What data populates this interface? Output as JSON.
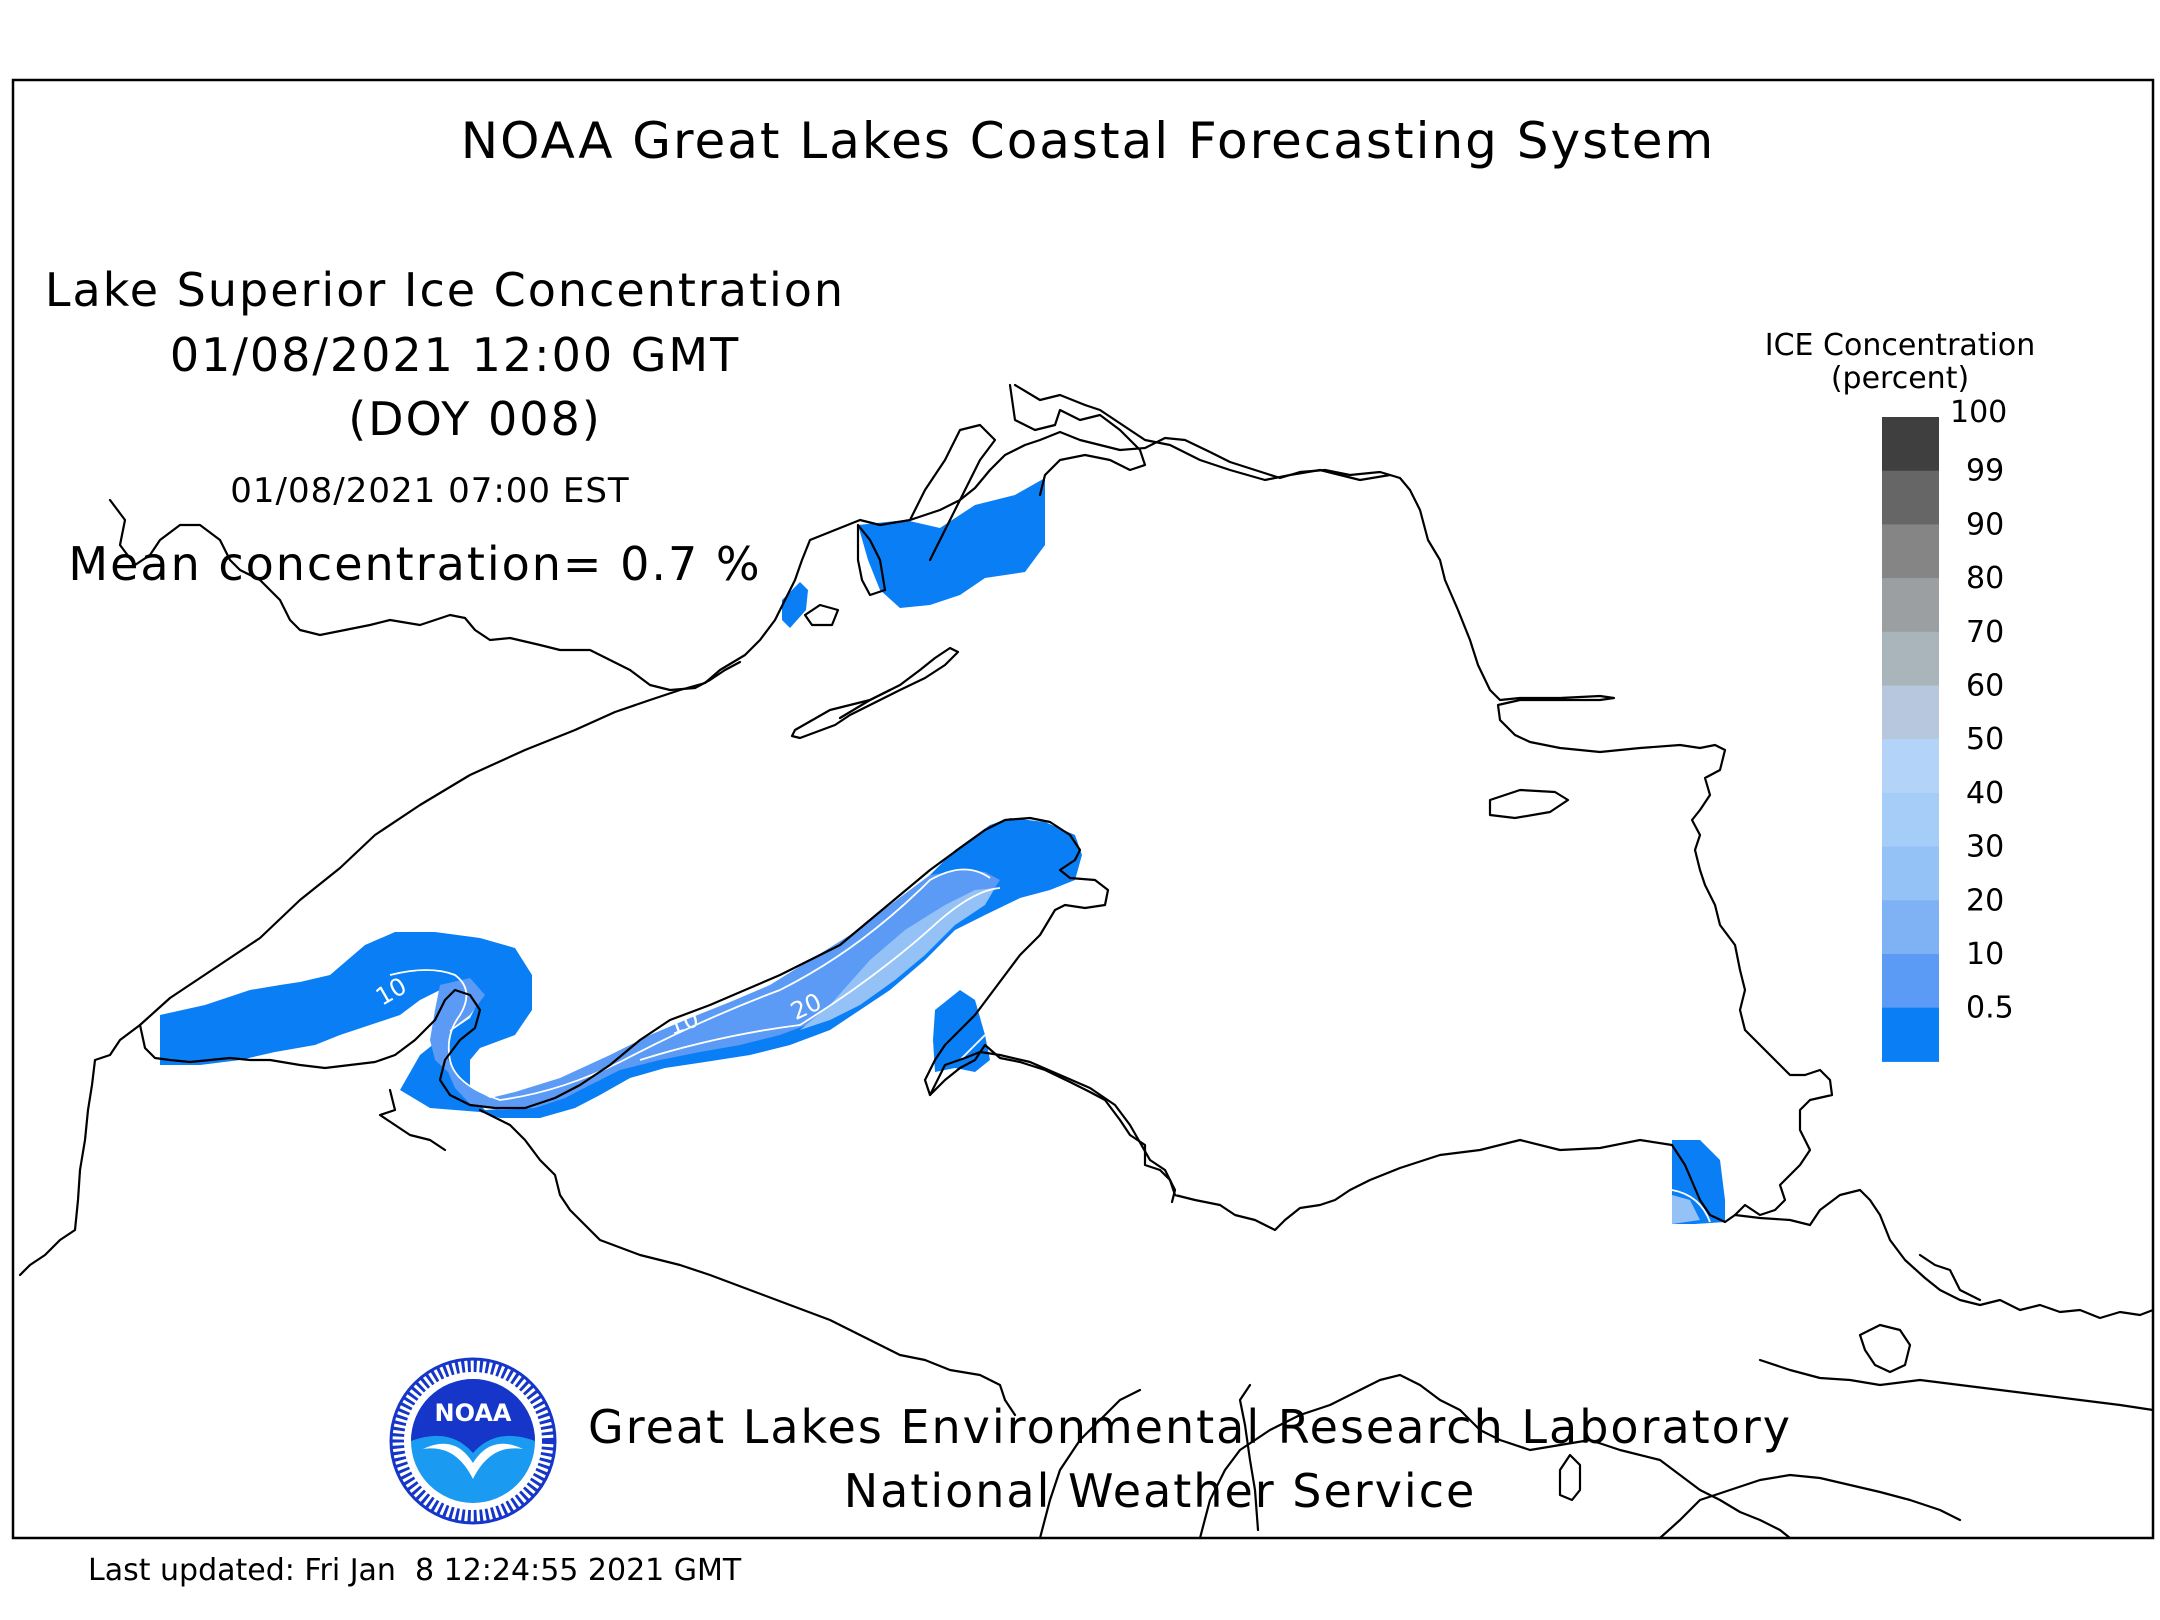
{
  "header": {
    "title": "NOAA Great Lakes Coastal Forecasting System"
  },
  "info": {
    "map_title": "Lake Superior Ice Concentration",
    "gmt_time": "01/08/2021 12:00 GMT",
    "doy": "(DOY 008)",
    "est_time": "01/08/2021 07:00 EST",
    "mean_concentration": "Mean concentration= 0.7 %"
  },
  "legend": {
    "title_line1": "ICE Concentration",
    "title_line2": "(percent)",
    "levels": [
      {
        "label": "100",
        "color": "#3f3f3f"
      },
      {
        "label": "99",
        "color": "#666666"
      },
      {
        "label": "90",
        "color": "#858585"
      },
      {
        "label": "80",
        "color": "#9b9fa1"
      },
      {
        "label": "70",
        "color": "#a9b5bb"
      },
      {
        "label": "60",
        "color": "#b7c7de"
      },
      {
        "label": "50",
        "color": "#b4d3f8"
      },
      {
        "label": "40",
        "color": "#a6cdf8"
      },
      {
        "label": "30",
        "color": "#94c2f7"
      },
      {
        "label": "20",
        "color": "#7fb2f5"
      },
      {
        "label": "10",
        "color": "#5b9bf5"
      },
      {
        "label": "0.5",
        "color": "#0a7ef5"
      }
    ]
  },
  "contour_labels": [
    "10",
    "10",
    "20"
  ],
  "footer": {
    "lab_name": "Great Lakes Environmental Research Laboratory",
    "service_name": "National Weather Service",
    "logo_text": "NOAA",
    "last_updated": "Last updated: Fri Jan  8 12:24:55 2021 GMT"
  },
  "colors": {
    "ice_base": "#0a7ef5",
    "ice_10": "#5b9bf5",
    "ice_20": "#94c2f7",
    "logo_blue": "#1536c8",
    "logo_light": "#1a9af0"
  }
}
